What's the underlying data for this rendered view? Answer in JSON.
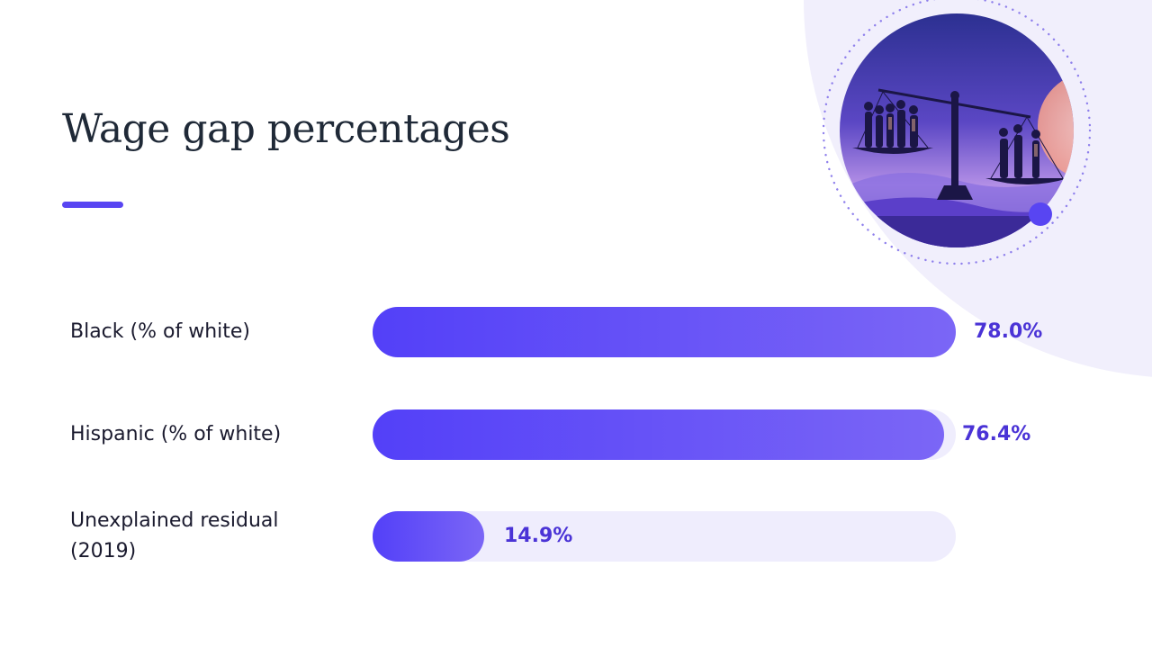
{
  "slide": {
    "title": "Wage gap percentages"
  },
  "colors": {
    "accent": "#5845f2",
    "bar_start": "#5340f8",
    "bar_end": "#7b66f6",
    "track": "#efedfd",
    "value_text": "#4a33d6",
    "background_blob": "#f1effc"
  },
  "illustration": {
    "icon": "balance-scale-people-illustration"
  },
  "chart_data": {
    "type": "bar",
    "orientation": "horizontal",
    "categories": [
      "Black (% of white)",
      "Hispanic (% of white)",
      "Unexplained residual (2019)"
    ],
    "values": [
      78.0,
      76.4,
      14.9
    ],
    "value_labels": [
      "78.0%",
      "76.4%",
      "14.9%"
    ],
    "unit": "%",
    "xlim": [
      0,
      100
    ],
    "title": "Wage gap percentages",
    "grid": false,
    "legend": "none"
  }
}
